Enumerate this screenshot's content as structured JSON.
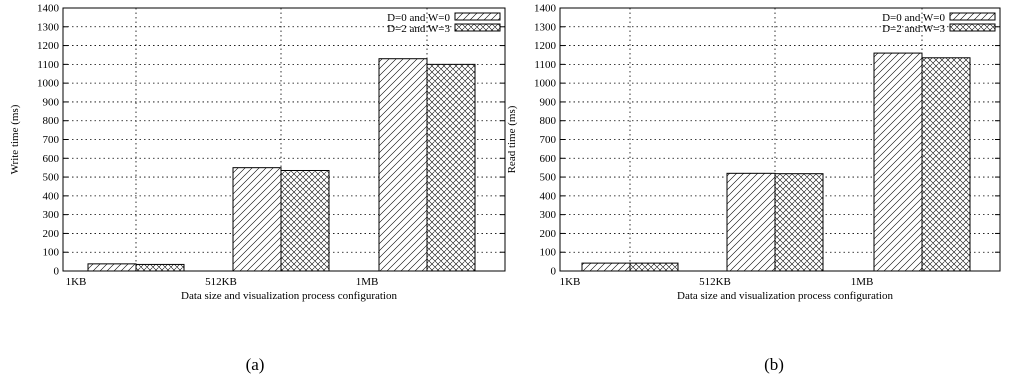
{
  "chart_data": [
    {
      "type": "bar",
      "panel_label": "(a)",
      "categories": [
        "1KB",
        "512KB",
        "1MB"
      ],
      "series": [
        {
          "name": "D=0 and W=0",
          "values": [
            38,
            550,
            1130
          ]
        },
        {
          "name": "D=2 and W=3",
          "values": [
            35,
            535,
            1100
          ]
        }
      ],
      "title": "",
      "xlabel": "Data size and visualization process configuration",
      "ylabel": "Write time (ms)",
      "ylim": [
        0,
        1400
      ],
      "yticks": [
        0,
        100,
        200,
        300,
        400,
        500,
        600,
        700,
        800,
        900,
        1000,
        1100,
        1200,
        1300,
        1400
      ],
      "grid": true,
      "legend": "top-right"
    },
    {
      "type": "bar",
      "panel_label": "(b)",
      "categories": [
        "1KB",
        "512KB",
        "1MB"
      ],
      "series": [
        {
          "name": "D=0 and W=0",
          "values": [
            42,
            520,
            1160
          ]
        },
        {
          "name": "D=2 and W=3",
          "values": [
            42,
            518,
            1135
          ]
        }
      ],
      "title": "",
      "xlabel": "Data size and visualization process configuration",
      "ylabel": "Read time (ms)",
      "ylim": [
        0,
        1400
      ],
      "yticks": [
        0,
        100,
        200,
        300,
        400,
        500,
        600,
        700,
        800,
        900,
        1000,
        1100,
        1200,
        1300,
        1400
      ],
      "grid": true,
      "legend": "top-right"
    }
  ]
}
